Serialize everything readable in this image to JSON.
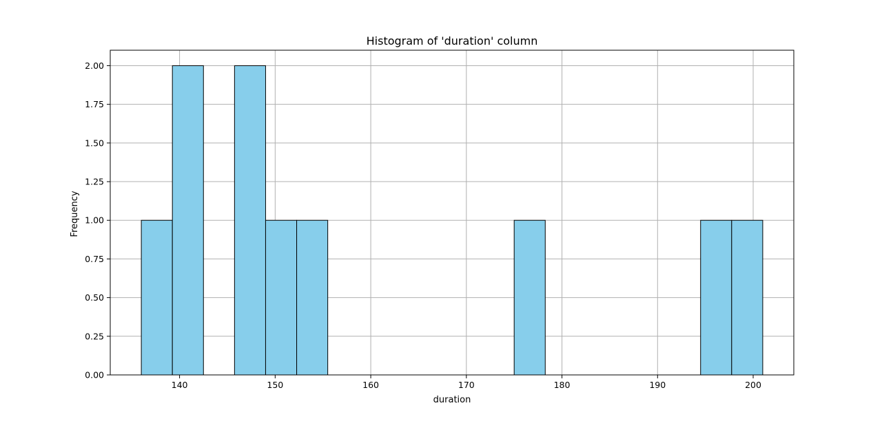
{
  "chart_data": {
    "type": "bar",
    "title": "Histogram of 'duration' column",
    "xlabel": "duration",
    "ylabel": "Frequency",
    "xlim": [
      132.75,
      204.25
    ],
    "ylim": [
      0,
      2.1
    ],
    "x_ticks": [
      140,
      150,
      160,
      170,
      180,
      190,
      200
    ],
    "y_ticks": [
      "0.00",
      "0.25",
      "0.50",
      "0.75",
      "1.00",
      "1.25",
      "1.50",
      "1.75",
      "2.00"
    ],
    "grid": true,
    "bar_color": "#87ceeb",
    "edge_color": "#000000",
    "bins": [
      {
        "start": 136.0,
        "end": 139.25,
        "count": 1
      },
      {
        "start": 139.25,
        "end": 142.5,
        "count": 2
      },
      {
        "start": 142.5,
        "end": 145.75,
        "count": 0
      },
      {
        "start": 145.75,
        "end": 149.0,
        "count": 2
      },
      {
        "start": 149.0,
        "end": 152.25,
        "count": 1
      },
      {
        "start": 152.25,
        "end": 155.5,
        "count": 1
      },
      {
        "start": 155.5,
        "end": 158.75,
        "count": 0
      },
      {
        "start": 158.75,
        "end": 162.0,
        "count": 0
      },
      {
        "start": 162.0,
        "end": 165.25,
        "count": 0
      },
      {
        "start": 165.25,
        "end": 168.5,
        "count": 0
      },
      {
        "start": 168.5,
        "end": 171.75,
        "count": 0
      },
      {
        "start": 171.75,
        "end": 175.0,
        "count": 0
      },
      {
        "start": 175.0,
        "end": 178.25,
        "count": 1
      },
      {
        "start": 178.25,
        "end": 181.5,
        "count": 0
      },
      {
        "start": 181.5,
        "end": 184.75,
        "count": 0
      },
      {
        "start": 184.75,
        "end": 188.0,
        "count": 0
      },
      {
        "start": 188.0,
        "end": 191.25,
        "count": 0
      },
      {
        "start": 191.25,
        "end": 194.5,
        "count": 0
      },
      {
        "start": 194.5,
        "end": 197.75,
        "count": 1
      },
      {
        "start": 197.75,
        "end": 201.0,
        "count": 1
      }
    ]
  }
}
